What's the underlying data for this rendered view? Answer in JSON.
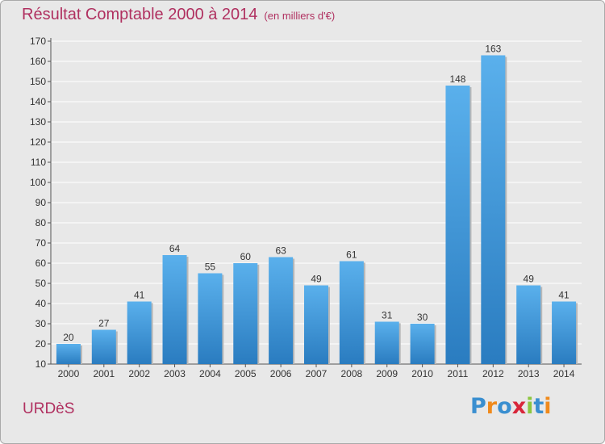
{
  "header": {
    "title": "Résultat Comptable 2000 à 2014",
    "subtitle": "(en milliers d'€)"
  },
  "footer": {
    "commune": "URDèS",
    "logo": [
      "P",
      "r",
      "o",
      "x",
      "i",
      "t",
      "i"
    ],
    "logo_colors": [
      "#3a8fd0",
      "#f08a1c",
      "#3a8fd0",
      "#d8263a",
      "#8cc63f",
      "#3a8fd0",
      "#f08a1c"
    ]
  },
  "colors": {
    "title": "#b03060",
    "bar_top": "#5ab0ec",
    "bar_bottom": "#2a7cc0",
    "grid": "#ffffff",
    "background": "#e8e8e8"
  },
  "chart_data": {
    "type": "bar",
    "title": "Résultat Comptable 2000 à 2014",
    "subtitle": "(en milliers d'€)",
    "xlabel": "",
    "ylabel": "",
    "categories": [
      "2000",
      "2001",
      "2002",
      "2003",
      "2004",
      "2005",
      "2006",
      "2007",
      "2008",
      "2009",
      "2010",
      "2011",
      "2012",
      "2013",
      "2014"
    ],
    "values": [
      20,
      27,
      41,
      64,
      55,
      60,
      63,
      49,
      61,
      31,
      30,
      148,
      163,
      49,
      41
    ],
    "ylim": [
      10,
      170
    ],
    "yticks": [
      10,
      20,
      30,
      40,
      50,
      60,
      70,
      80,
      90,
      100,
      110,
      120,
      130,
      140,
      150,
      160,
      170
    ],
    "grid": true
  }
}
